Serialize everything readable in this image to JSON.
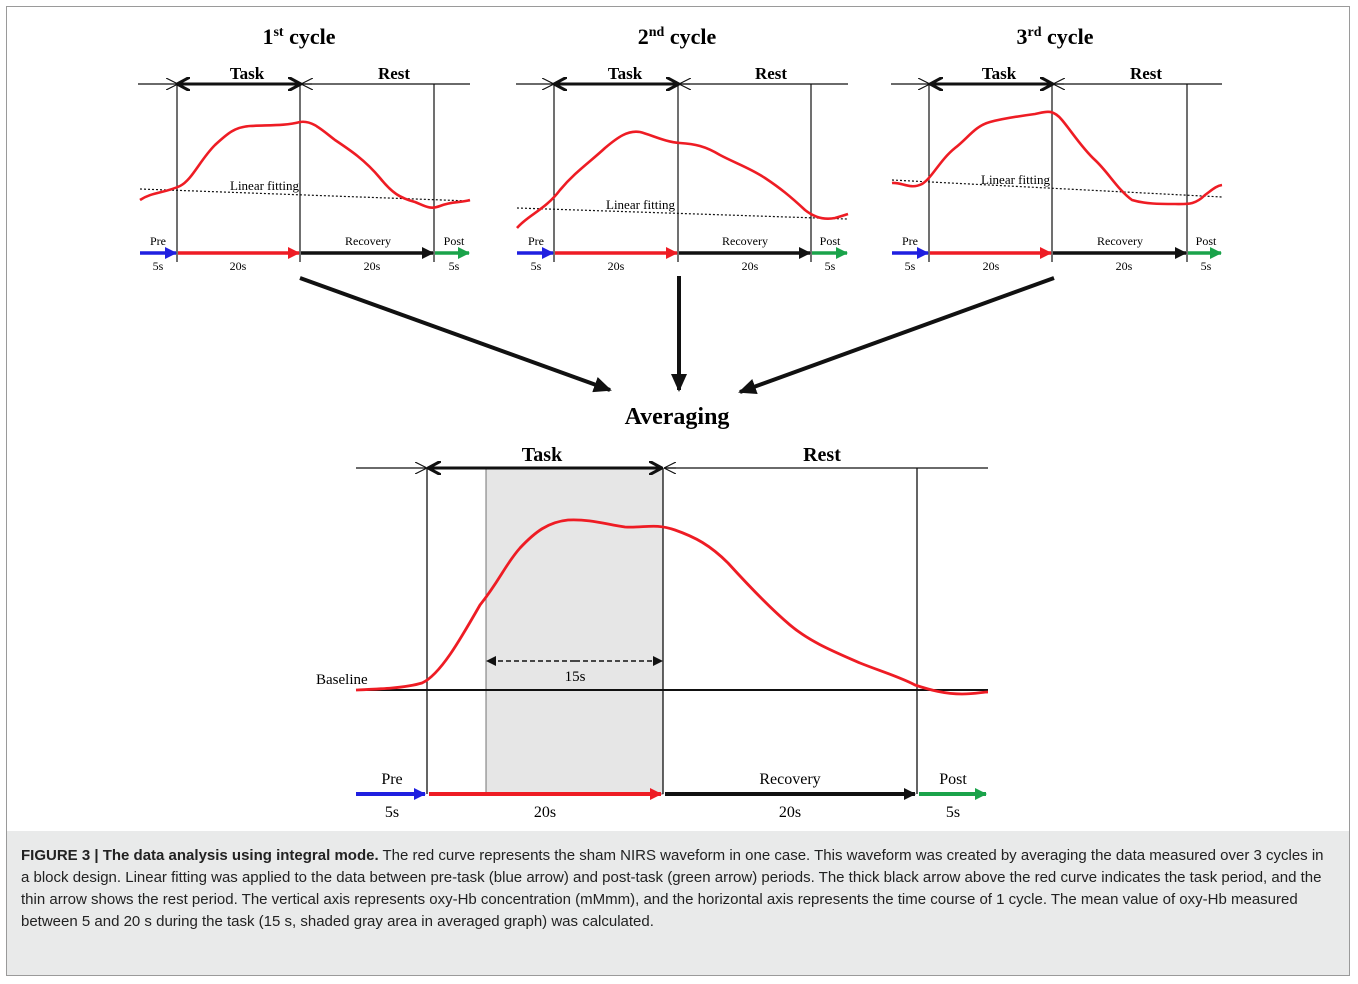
{
  "panels": [
    {
      "title_main": "1",
      "title_sup": "st",
      "title_tail": " cycle",
      "task_label": "Task",
      "rest_label": "Rest",
      "fit_label": "Linear fitting",
      "pre_label": "Pre",
      "recovery_label": "Recovery",
      "post_label": "Post",
      "dur_pre": "5s",
      "dur_task": "20s",
      "dur_recovery": "20s",
      "dur_post": "5s"
    },
    {
      "title_main": "2",
      "title_sup": "nd",
      "title_tail": " cycle",
      "task_label": "Task",
      "rest_label": "Rest",
      "fit_label": "Linear fitting",
      "pre_label": "Pre",
      "recovery_label": "Recovery",
      "post_label": "Post",
      "dur_pre": "5s",
      "dur_task": "20s",
      "dur_recovery": "20s",
      "dur_post": "5s"
    },
    {
      "title_main": "3",
      "title_sup": "rd",
      "title_tail": " cycle",
      "task_label": "Task",
      "rest_label": "Rest",
      "fit_label": "Linear fitting",
      "pre_label": "Pre",
      "recovery_label": "Recovery",
      "post_label": "Post",
      "dur_pre": "5s",
      "dur_task": "20s",
      "dur_recovery": "20s",
      "dur_post": "5s"
    }
  ],
  "averaging": {
    "title": "Averaging",
    "task_label": "Task",
    "rest_label": "Rest",
    "baseline_label": "Baseline",
    "shaded_label": "15s",
    "pre_label": "Pre",
    "recovery_label": "Recovery",
    "post_label": "Post",
    "dur_pre": "5s",
    "dur_task": "20s",
    "dur_recovery": "20s",
    "dur_post": "5s"
  },
  "colors": {
    "curve": "#ee1c24",
    "pre": "#1f1fe0",
    "task": "#ee1c24",
    "recovery": "#111111",
    "post": "#1aa34a",
    "shade": "#e6e6e6"
  },
  "caption": {
    "label": "FIGURE 3 | The data analysis using integral mode.",
    "text": " The red curve represents the sham NIRS waveform in one case. This waveform was created by averaging the data measured over 3 cycles in a block design. Linear fitting was applied to the data between pre-task (blue arrow) and post-task (green arrow) periods. The thick black arrow above the red curve indicates the task period, and the thin arrow shows the rest period. The vertical axis represents oxy-Hb concentration (mMmm), and the horizontal axis represents the time course of 1 cycle. The mean value of oxy-Hb measured between 5 and 20 s during the task (15 s, shaded gray area in averaged graph) was calculated."
  }
}
